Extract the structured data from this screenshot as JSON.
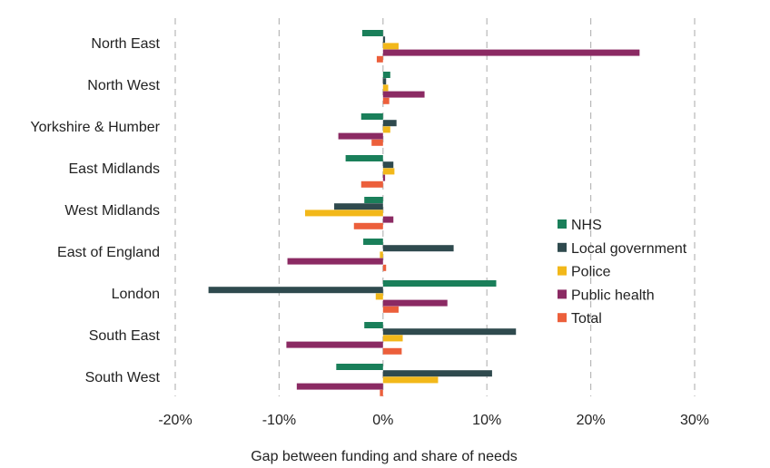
{
  "chart_data": {
    "type": "bar",
    "orientation": "horizontal",
    "title": "",
    "xlabel": "Gap between funding and share of needs",
    "ylabel": "",
    "xlim": [
      -20,
      30
    ],
    "x_ticks": [
      -20,
      -10,
      0,
      10,
      20,
      30
    ],
    "x_tick_labels": [
      "-20%",
      "-10%",
      "0%",
      "10%",
      "20%",
      "30%"
    ],
    "grid": "vertical dashed",
    "legend_position": "right",
    "categories": [
      "North East",
      "North West",
      "Yorkshire & Humber",
      "East Midlands",
      "West Midlands",
      "East of England",
      "London",
      "South East",
      "South West"
    ],
    "series": [
      {
        "name": "NHS",
        "color": "#1a7f5a",
        "values": [
          -2.0,
          0.7,
          -2.1,
          -3.6,
          -1.8,
          -1.9,
          10.9,
          -1.8,
          -4.5
        ]
      },
      {
        "name": "Local government",
        "color": "#2f4a4e",
        "values": [
          0.2,
          0.3,
          1.3,
          1.0,
          -4.7,
          6.8,
          -16.8,
          12.8,
          10.5
        ]
      },
      {
        "name": "Police",
        "color": "#f2b81a",
        "values": [
          1.5,
          0.5,
          0.7,
          1.1,
          -7.5,
          -0.3,
          -0.7,
          1.9,
          5.3
        ]
      },
      {
        "name": "Public health",
        "color": "#8b2a63",
        "values": [
          24.7,
          4.0,
          -4.3,
          0.2,
          1.0,
          -9.2,
          6.2,
          -9.3,
          -8.3
        ]
      },
      {
        "name": "Total",
        "color": "#ec5f3b",
        "values": [
          -0.6,
          0.6,
          -1.1,
          -2.1,
          -2.8,
          0.3,
          1.5,
          1.8,
          -0.3
        ]
      }
    ]
  }
}
